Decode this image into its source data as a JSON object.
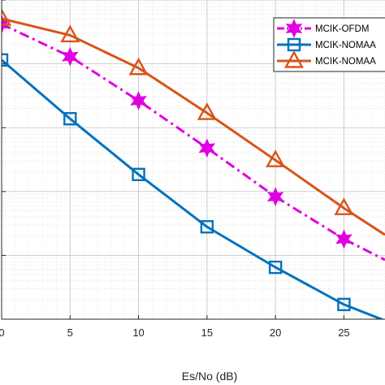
{
  "chart_data": {
    "type": "line",
    "title": "",
    "xlabel": "Es/No (dB)",
    "ylabel": "",
    "y_scale": "log",
    "xlim": [
      0,
      28
    ],
    "ylim": [
      1e-06,
      0.1
    ],
    "x_ticks": [
      0,
      5,
      10,
      15,
      20,
      25
    ],
    "x_tick_labels": [
      "0",
      "5",
      "10",
      "15",
      "20",
      "25"
    ],
    "grid": true,
    "minor_grid": true,
    "legend_position": "top-right",
    "x": [
      0,
      5,
      10,
      15,
      20,
      25,
      28
    ],
    "series": [
      {
        "name": "MCIK-OFDM",
        "color": "#e000e0",
        "line_style": "dash-dot",
        "marker": "hexagram",
        "values": [
          0.042,
          0.013,
          0.00265,
          0.00048,
          8.3e-05,
          1.8e-05,
          8.5e-06
        ]
      },
      {
        "name": "MCIK-NOMAA",
        "color": "#0072bd",
        "line_style": "solid",
        "marker": "square",
        "values": [
          0.0115,
          0.00138,
          0.000185,
          2.8e-05,
          6.5e-06,
          1.7e-06,
          9.5e-07
        ]
      },
      {
        "name": "MCIK-NOMAA",
        "color": "#d95319",
        "line_style": "solid",
        "marker": "triangle",
        "values": [
          0.051,
          0.028,
          0.0086,
          0.0017,
          0.00031,
          5.5e-05,
          2.1e-05
        ]
      }
    ]
  }
}
